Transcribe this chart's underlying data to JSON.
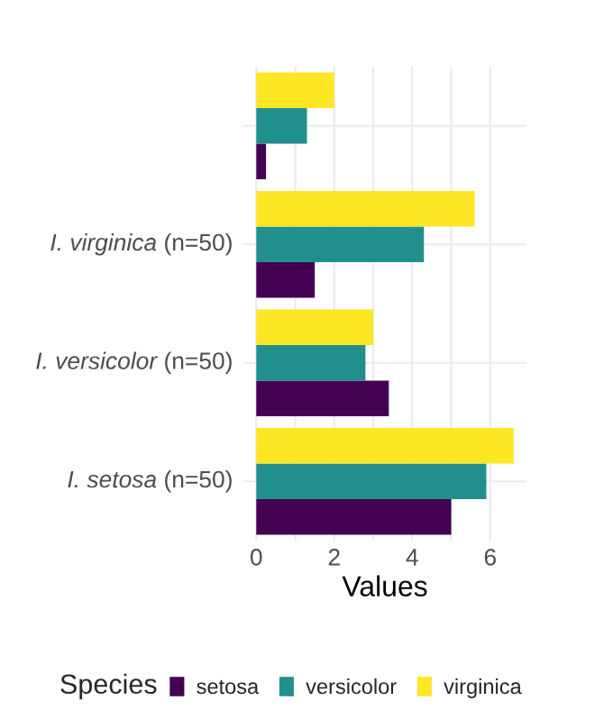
{
  "chart_data": {
    "type": "bar",
    "orientation": "horizontal",
    "xlabel": "Values",
    "legend_title": "Species",
    "categories": [
      null,
      "I. virginica (n=50)",
      "I. versicolor (n=50)",
      "I. setosa (n=50)"
    ],
    "series": [
      {
        "name": "setosa",
        "color": "#440154",
        "values": [
          0.25,
          1.5,
          3.4,
          5.0
        ]
      },
      {
        "name": "versicolor",
        "color": "#21908c",
        "values": [
          1.3,
          4.3,
          2.8,
          5.9
        ]
      },
      {
        "name": "virginica",
        "color": "#fde725",
        "values": [
          2.0,
          5.6,
          3.0,
          6.6
        ]
      }
    ],
    "xlim": [
      -0.33,
      6.93
    ],
    "xticks": [
      0,
      {
        "value": 1,
        "label": null
      },
      2,
      {
        "value": 3,
        "label": null
      },
      4,
      {
        "value": 5,
        "label": null
      },
      6
    ],
    "grid": true,
    "legend": "bottom"
  }
}
